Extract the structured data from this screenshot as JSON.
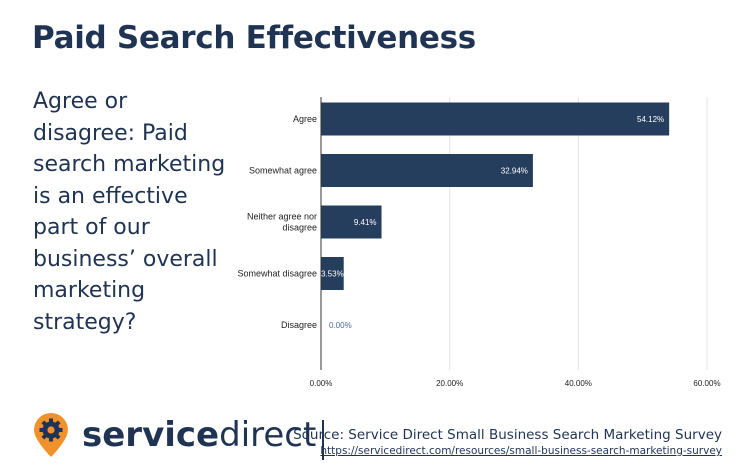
{
  "header": {
    "title": "Paid Search Effectiveness"
  },
  "question": "Agree or disagree: Paid search marketing is an effective part of our business’ overall marketing strategy?",
  "chart_data": {
    "type": "bar",
    "orientation": "horizontal",
    "categories": [
      "Agree",
      "Somewhat agree",
      "Neither agree nor disagree",
      "Somewhat disagree",
      "Disagree"
    ],
    "category_lines": [
      [
        "Agree"
      ],
      [
        "Somewhat agree"
      ],
      [
        "Neither agree nor",
        "disagree"
      ],
      [
        "Somewhat disagree"
      ],
      [
        "Disagree"
      ]
    ],
    "values": [
      54.12,
      32.94,
      9.41,
      3.53,
      0.0
    ],
    "value_labels": [
      "54.12%",
      "32.94%",
      "9.41%",
      "3.53%",
      "0.00%"
    ],
    "xlim": [
      0,
      60
    ],
    "x_ticks": [
      0,
      20,
      40,
      60
    ],
    "x_tick_labels": [
      "0.00%",
      "20.00%",
      "40.00%",
      "60.00%"
    ],
    "grid": true,
    "bar_color": "#253e5e"
  },
  "footer": {
    "logo_bold": "service",
    "logo_light": "direct",
    "source": "Source: Service Direct Small Business Search Marketing Survey",
    "url": "https://servicedirect.com/resources/small-business-search-marketing-survey"
  },
  "colors": {
    "navy": "#1f3352",
    "orange": "#f0912b"
  },
  "icons": {
    "logo": "gear-location-pin-icon"
  }
}
